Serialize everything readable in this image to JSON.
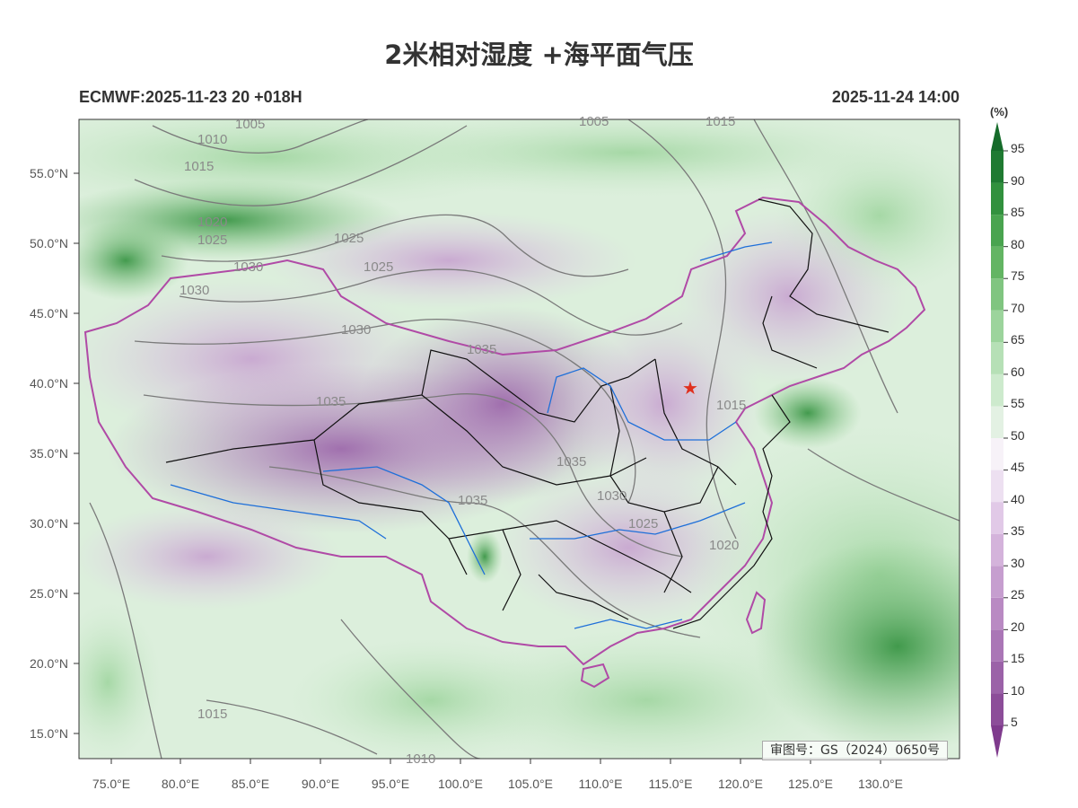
{
  "header": {
    "title": "2米相对湿度 +海平面气压",
    "model_run": "ECMWF:2025-11-23 20 +018H",
    "valid_time": "2025-11-24 14:00"
  },
  "map": {
    "lon_range": [
      72,
      137
    ],
    "lat_range": [
      13,
      59
    ],
    "lat_ticks": [
      "15.0°N",
      "20.0°N",
      "25.0°N",
      "30.0°N",
      "35.0°N",
      "40.0°N",
      "45.0°N",
      "50.0°N",
      "55.0°N"
    ],
    "lon_ticks": [
      "75.0°E",
      "80.0°E",
      "85.0°E",
      "90.0°E",
      "95.0°E",
      "100.0°E",
      "105.0°E",
      "110.0°E",
      "115.0°E",
      "120.0°E",
      "125.0°E",
      "130.0°E"
    ],
    "isobar_labels": [
      "1005",
      "1010",
      "1015",
      "1020",
      "1025",
      "1025",
      "1025",
      "1030",
      "1030",
      "1030",
      "1035",
      "1035",
      "1035",
      "1035",
      "1030",
      "1025",
      "1020",
      "1015",
      "1015",
      "1010",
      "1005",
      "1015"
    ],
    "capital_marker": "★",
    "approval_number": "审图号：GS（2024）0650号"
  },
  "colorbar": {
    "unit": "(%)",
    "levels": [
      "5",
      "10",
      "15",
      "20",
      "25",
      "30",
      "35",
      "40",
      "45",
      "50",
      "55",
      "60",
      "65",
      "70",
      "75",
      "80",
      "85",
      "90",
      "95"
    ],
    "colors": [
      "#7f3b8d",
      "#8c4d99",
      "#9b62a8",
      "#aa76b6",
      "#b98ac3",
      "#c69ecf",
      "#d4b3db",
      "#e1c9e7",
      "#ede0f1",
      "#f7f2f8",
      "#e3f1e3",
      "#cdeacd",
      "#b6e0b6",
      "#9cd49c",
      "#80c580",
      "#63b563",
      "#49a44f",
      "#32913e",
      "#1f7a32",
      "#156b2a"
    ]
  }
}
